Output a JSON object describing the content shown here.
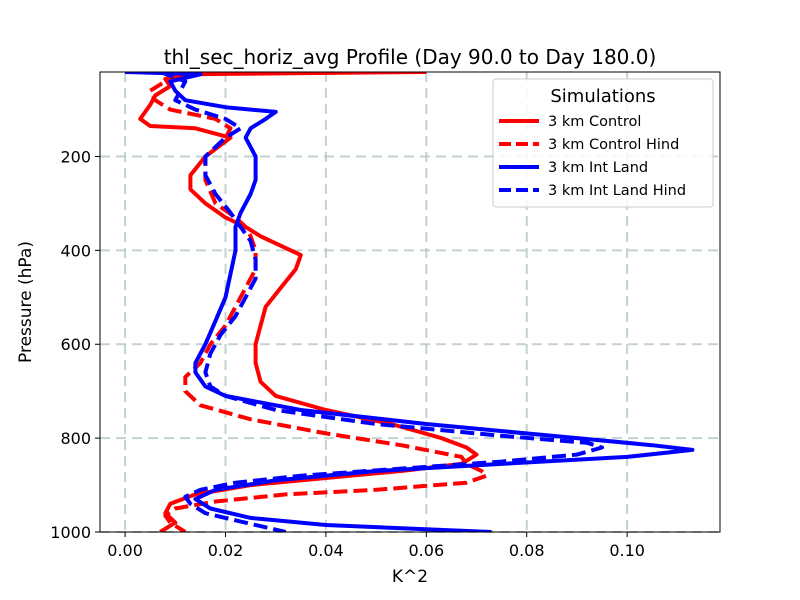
{
  "chart_data": {
    "type": "line",
    "title": "thl_sec_horiz_avg Profile (Day 90.0 to Day 180.0)",
    "xlabel": "K^2",
    "ylabel": "Pressure (hPa)",
    "xlim": [
      -0.005,
      0.1185
    ],
    "ylim": [
      1000,
      20
    ],
    "y_inverted": true,
    "grid": true,
    "x_ticks": [
      0.0,
      0.02,
      0.04,
      0.06,
      0.08,
      0.1
    ],
    "x_tick_labels": [
      "0.00",
      "0.02",
      "0.04",
      "0.06",
      "0.08",
      "0.10"
    ],
    "y_ticks": [
      200,
      400,
      600,
      800,
      1000
    ],
    "y_tick_labels": [
      "200",
      "400",
      "600",
      "800",
      "1000"
    ],
    "legend": {
      "title": "Simulations",
      "placement": "top-right",
      "entries": [
        "3 km Control",
        "3 km Control Hind",
        "3 km Int Land",
        "3 km Int Land Hind"
      ]
    },
    "series": [
      {
        "name": "3 km Control",
        "color": "#ff0000",
        "style": "solid",
        "points": [
          [
            0.06,
            20
          ],
          [
            0.012,
            25
          ],
          [
            0.008,
            35
          ],
          [
            0.009,
            50
          ],
          [
            0.006,
            70
          ],
          [
            0.005,
            90
          ],
          [
            0.003,
            120
          ],
          [
            0.005,
            135
          ],
          [
            0.014,
            140
          ],
          [
            0.021,
            160
          ],
          [
            0.016,
            200
          ],
          [
            0.013,
            240
          ],
          [
            0.013,
            270
          ],
          [
            0.016,
            300
          ],
          [
            0.02,
            330
          ],
          [
            0.024,
            350
          ],
          [
            0.027,
            370
          ],
          [
            0.031,
            390
          ],
          [
            0.035,
            410
          ],
          [
            0.034,
            440
          ],
          [
            0.031,
            480
          ],
          [
            0.028,
            520
          ],
          [
            0.027,
            560
          ],
          [
            0.026,
            600
          ],
          [
            0.026,
            640
          ],
          [
            0.027,
            680
          ],
          [
            0.03,
            710
          ],
          [
            0.04,
            740
          ],
          [
            0.053,
            770
          ],
          [
            0.063,
            800
          ],
          [
            0.068,
            820
          ],
          [
            0.07,
            835
          ],
          [
            0.067,
            855
          ],
          [
            0.055,
            870
          ],
          [
            0.04,
            885
          ],
          [
            0.025,
            900
          ],
          [
            0.014,
            920
          ],
          [
            0.009,
            940
          ],
          [
            0.008,
            960
          ],
          [
            0.01,
            980
          ],
          [
            0.007,
            1000
          ]
        ]
      },
      {
        "name": "3 km Control Hind",
        "color": "#ff0000",
        "style": "dashed",
        "points": [
          [
            0.015,
            20
          ],
          [
            0.008,
            40
          ],
          [
            0.005,
            60
          ],
          [
            0.006,
            80
          ],
          [
            0.009,
            100
          ],
          [
            0.018,
            120
          ],
          [
            0.021,
            140
          ],
          [
            0.02,
            160
          ],
          [
            0.016,
            200
          ],
          [
            0.016,
            250
          ],
          [
            0.018,
            300
          ],
          [
            0.022,
            330
          ],
          [
            0.024,
            350
          ],
          [
            0.025,
            370
          ],
          [
            0.026,
            400
          ],
          [
            0.026,
            440
          ],
          [
            0.024,
            480
          ],
          [
            0.022,
            520
          ],
          [
            0.02,
            560
          ],
          [
            0.017,
            600
          ],
          [
            0.015,
            640
          ],
          [
            0.012,
            670
          ],
          [
            0.012,
            700
          ],
          [
            0.015,
            730
          ],
          [
            0.025,
            760
          ],
          [
            0.04,
            790
          ],
          [
            0.055,
            815
          ],
          [
            0.067,
            840
          ],
          [
            0.068,
            855
          ],
          [
            0.071,
            870
          ],
          [
            0.072,
            880
          ],
          [
            0.068,
            895
          ],
          [
            0.05,
            910
          ],
          [
            0.032,
            920
          ],
          [
            0.018,
            935
          ],
          [
            0.01,
            950
          ],
          [
            0.008,
            965
          ],
          [
            0.009,
            980
          ],
          [
            0.012,
            1000
          ]
        ]
      },
      {
        "name": "3 km Int Land",
        "color": "#0000ff",
        "style": "solid",
        "points": [
          [
            0.0,
            20
          ],
          [
            0.015,
            25
          ],
          [
            0.009,
            40
          ],
          [
            0.01,
            60
          ],
          [
            0.012,
            80
          ],
          [
            0.02,
            95
          ],
          [
            0.03,
            105
          ],
          [
            0.028,
            120
          ],
          [
            0.025,
            140
          ],
          [
            0.024,
            160
          ],
          [
            0.025,
            180
          ],
          [
            0.026,
            200
          ],
          [
            0.026,
            220
          ],
          [
            0.026,
            250
          ],
          [
            0.025,
            280
          ],
          [
            0.024,
            300
          ],
          [
            0.023,
            320
          ],
          [
            0.022,
            350
          ],
          [
            0.022,
            400
          ],
          [
            0.021,
            450
          ],
          [
            0.02,
            500
          ],
          [
            0.018,
            550
          ],
          [
            0.016,
            600
          ],
          [
            0.014,
            640
          ],
          [
            0.014,
            660
          ],
          [
            0.016,
            690
          ],
          [
            0.02,
            710
          ],
          [
            0.035,
            740
          ],
          [
            0.06,
            770
          ],
          [
            0.085,
            795
          ],
          [
            0.105,
            815
          ],
          [
            0.113,
            825
          ],
          [
            0.1,
            840
          ],
          [
            0.075,
            855
          ],
          [
            0.05,
            870
          ],
          [
            0.03,
            890
          ],
          [
            0.018,
            910
          ],
          [
            0.014,
            930
          ],
          [
            0.017,
            950
          ],
          [
            0.025,
            970
          ],
          [
            0.04,
            985
          ],
          [
            0.073,
            1000
          ]
        ]
      },
      {
        "name": "3 km Int Land Hind",
        "color": "#0000ff",
        "style": "dashed",
        "points": [
          [
            0.007,
            20
          ],
          [
            0.012,
            40
          ],
          [
            0.011,
            60
          ],
          [
            0.01,
            80
          ],
          [
            0.014,
            100
          ],
          [
            0.02,
            120
          ],
          [
            0.023,
            140
          ],
          [
            0.02,
            160
          ],
          [
            0.018,
            180
          ],
          [
            0.016,
            200
          ],
          [
            0.016,
            240
          ],
          [
            0.018,
            280
          ],
          [
            0.021,
            320
          ],
          [
            0.023,
            350
          ],
          [
            0.025,
            380
          ],
          [
            0.026,
            420
          ],
          [
            0.026,
            460
          ],
          [
            0.024,
            500
          ],
          [
            0.022,
            540
          ],
          [
            0.019,
            580
          ],
          [
            0.017,
            620
          ],
          [
            0.016,
            660
          ],
          [
            0.017,
            690
          ],
          [
            0.02,
            710
          ],
          [
            0.03,
            740
          ],
          [
            0.05,
            770
          ],
          [
            0.075,
            795
          ],
          [
            0.092,
            810
          ],
          [
            0.095,
            820
          ],
          [
            0.09,
            835
          ],
          [
            0.075,
            850
          ],
          [
            0.055,
            865
          ],
          [
            0.035,
            880
          ],
          [
            0.022,
            895
          ],
          [
            0.015,
            910
          ],
          [
            0.012,
            925
          ],
          [
            0.013,
            940
          ],
          [
            0.016,
            960
          ],
          [
            0.022,
            975
          ],
          [
            0.028,
            990
          ],
          [
            0.032,
            1000
          ]
        ]
      }
    ]
  }
}
